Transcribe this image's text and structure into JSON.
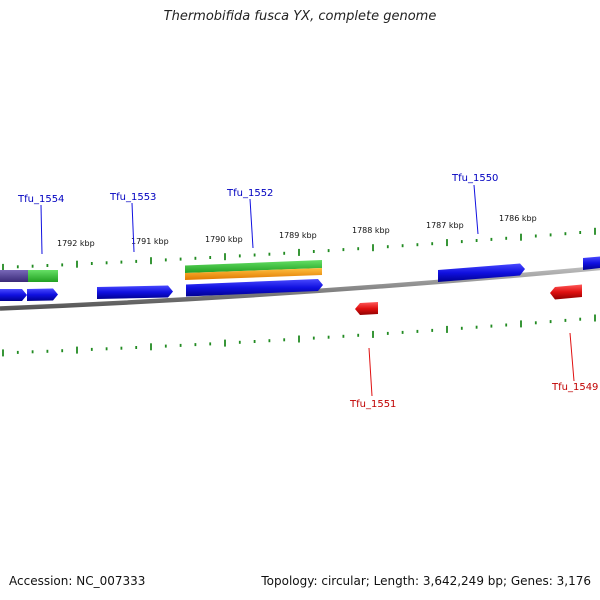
{
  "title": "Thermobifida fusca YX, complete genome",
  "footer": {
    "accession": "Accession: NC_007333",
    "summary": "Topology: circular; Length: 3,642,249 bp; Genes: 3,176"
  },
  "colors": {
    "forward_gene": "#1010e0",
    "reverse_gene": "#e01010",
    "ticks": "#228B22",
    "backbone": "#888888",
    "green_feature": "#33cc33",
    "orange_feature": "#ff9900",
    "purple_feature": "#5a4a9a"
  },
  "ruler_labels": [
    "1792 kbp",
    "1791 kbp",
    "1790 kbp",
    "1789 kbp",
    "1788 kbp",
    "1787 kbp",
    "1786 kbp"
  ],
  "gene_labels": {
    "forward": [
      "Tfu_1554",
      "Tfu_1553",
      "Tfu_1552",
      "Tfu_1550"
    ],
    "reverse": [
      "Tfu_1551",
      "Tfu_1549"
    ]
  }
}
